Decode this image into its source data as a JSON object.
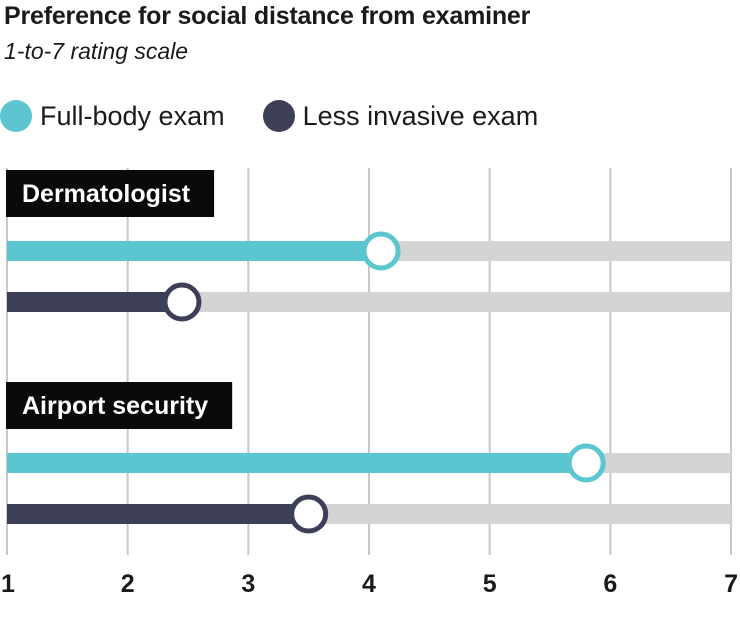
{
  "chart_data": {
    "type": "dot-bar",
    "title": "Preference for social distance from examiner",
    "subtitle": "1-to-7 rating scale",
    "xlim": [
      1,
      7
    ],
    "ticks": [
      1,
      2,
      3,
      4,
      5,
      6,
      7
    ],
    "series": [
      {
        "name": "Full-body exam",
        "color": "#5bc6cf"
      },
      {
        "name": "Less invasive exam",
        "color": "#3d3e58"
      }
    ],
    "groups": [
      {
        "label": "Dermatologist",
        "values": [
          4.1,
          2.45
        ]
      },
      {
        "label": "Airport security",
        "values": [
          5.8,
          3.5
        ]
      }
    ],
    "track_color": "#d4d4d4",
    "label_bg": "#0a0a0a",
    "label_fg": "#ffffff"
  }
}
